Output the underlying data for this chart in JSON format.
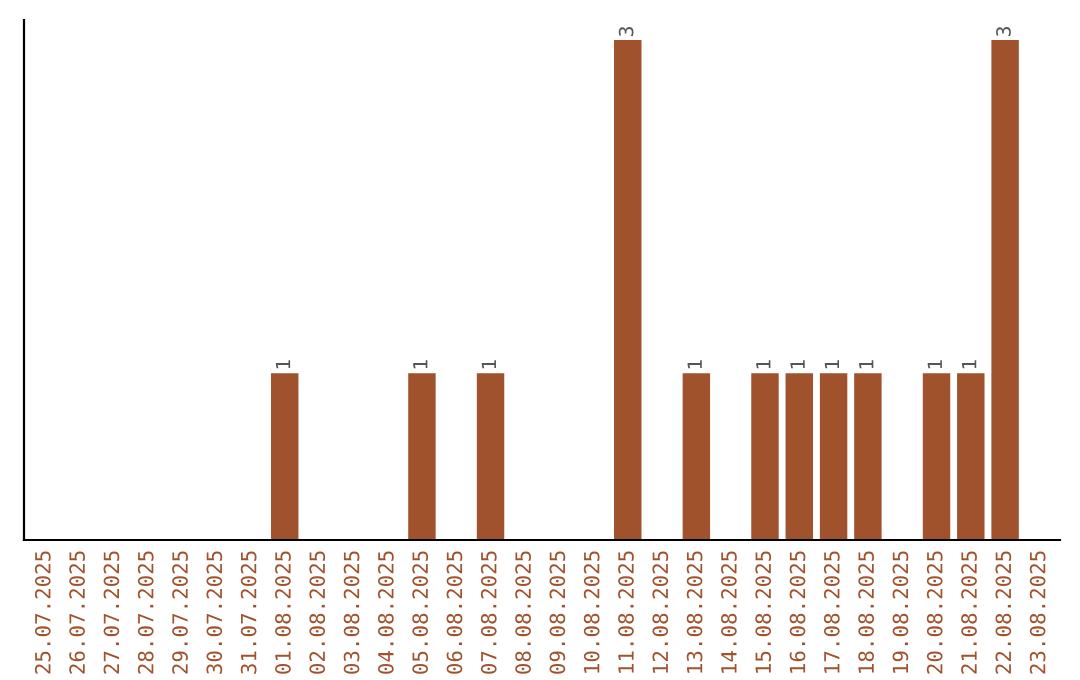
{
  "chart_data": {
    "type": "bar",
    "categories": [
      "25.07.2025",
      "26.07.2025",
      "27.07.2025",
      "28.07.2025",
      "29.07.2025",
      "30.07.2025",
      "31.07.2025",
      "01.08.2025",
      "02.08.2025",
      "03.08.2025",
      "04.08.2025",
      "05.08.2025",
      "06.08.2025",
      "07.08.2025",
      "08.08.2025",
      "09.08.2025",
      "10.08.2025",
      "11.08.2025",
      "12.08.2025",
      "13.08.2025",
      "14.08.2025",
      "15.08.2025",
      "16.08.2025",
      "17.08.2025",
      "18.08.2025",
      "19.08.2025",
      "20.08.2025",
      "21.08.2025",
      "22.08.2025",
      "23.08.2025"
    ],
    "values": [
      0,
      0,
      0,
      0,
      0,
      0,
      0,
      1,
      0,
      0,
      0,
      1,
      0,
      1,
      0,
      0,
      0,
      3,
      0,
      1,
      0,
      1,
      1,
      1,
      1,
      0,
      1,
      1,
      3,
      0
    ],
    "value_labels": [
      null,
      null,
      null,
      null,
      null,
      null,
      null,
      "1",
      null,
      null,
      null,
      "1",
      null,
      "1",
      null,
      null,
      null,
      "3",
      null,
      "1",
      null,
      "1",
      "1",
      "1",
      "1",
      null,
      "1",
      "1",
      "3",
      null
    ],
    "color": "#a0522d",
    "ylim": [
      0,
      3.12
    ],
    "tick_labels": "x",
    "grid": false,
    "legend": false
  }
}
